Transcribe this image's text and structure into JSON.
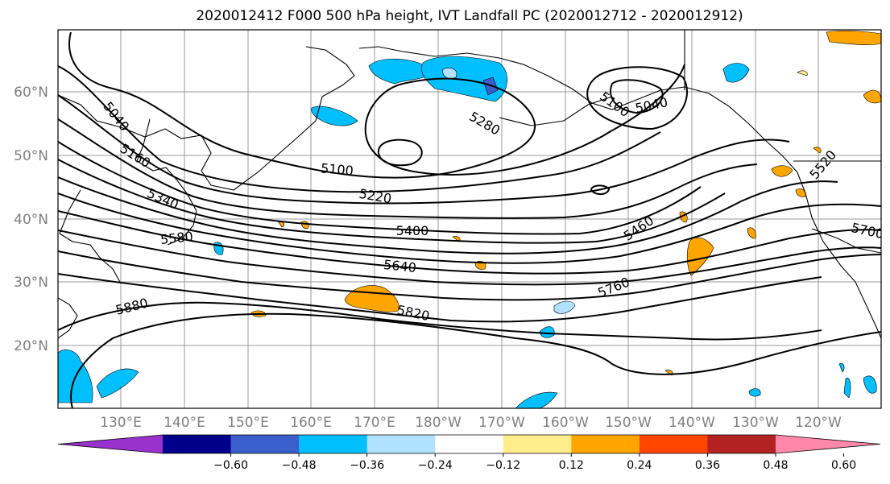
{
  "title": "2020012412 F000 500 hPa height, IVT Landfall PC (2020012712 - 2020012912)",
  "map": {
    "lat_labels": [
      "60°N",
      "50°N",
      "40°N",
      "30°N",
      "20°N"
    ],
    "lon_labels": [
      "130°E",
      "140°E",
      "150°E",
      "160°E",
      "170°E",
      "180°W",
      "170°W",
      "160°W",
      "150°W",
      "140°W",
      "130°W",
      "120°W"
    ],
    "gridlines": true,
    "contour_labels": [
      "5040",
      "5160",
      "5340",
      "5580",
      "5880",
      "5100",
      "5220",
      "5400",
      "5640",
      "5820",
      "5280",
      "5460",
      "5760",
      "5040",
      "5100",
      "5520",
      "5700"
    ]
  },
  "colorbar": {
    "ticks": [
      "−0.60",
      "−0.48",
      "−0.36",
      "−0.24",
      "−0.12",
      "0.12",
      "0.24",
      "0.36",
      "0.48",
      "0.60"
    ],
    "colors": [
      "#9932cc",
      "#00008b",
      "#3a5fcd",
      "#00bfff",
      "#b0e2ff",
      "#ffffff",
      "#ffec8b",
      "#ffa500",
      "#ff4500",
      "#b22222",
      "#ff88aa"
    ]
  }
}
